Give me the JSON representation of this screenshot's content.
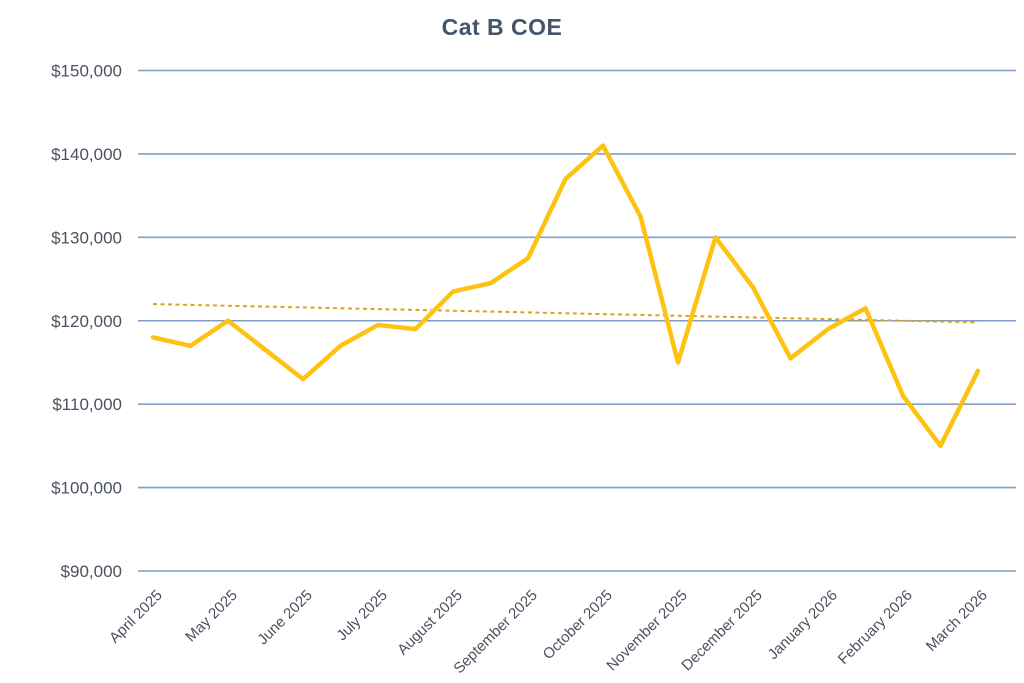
{
  "chart_data": {
    "type": "line",
    "title": "Cat B COE",
    "x_tick_labels": [
      "April 2025",
      "May 2025",
      "June 2025",
      "July 2025",
      "August 2025",
      "September 2025",
      "October 2025",
      "November 2025",
      "December 2025",
      "January 2026",
      "February 2026",
      "March 2026"
    ],
    "x_tick_every": 2,
    "values": [
      118000,
      117000,
      120000,
      116500,
      113000,
      117000,
      119500,
      119000,
      123500,
      124500,
      127500,
      137000,
      141000,
      132500,
      115000,
      130000,
      124000,
      115500,
      119000,
      121500,
      111000,
      105000,
      114000
    ],
    "points_per_month": 2,
    "trendline": {
      "style": "dashed",
      "start_value": 122000,
      "end_value": 119800
    },
    "y_ticks": [
      90000,
      100000,
      110000,
      120000,
      130000,
      140000,
      150000
    ],
    "y_tick_format": "$#,##0",
    "ylim": [
      90000,
      150000
    ],
    "xlabel": "",
    "ylabel": "",
    "grid": "horizontal",
    "legend": "none",
    "colors": {
      "series": "#FEC211",
      "series_edge": "#E8A33D",
      "trendline": "#D9A520",
      "gridline": "#7F9DC7",
      "title": "#44546A",
      "axis_text": "#4A5260",
      "background": "#FFFFFF"
    }
  }
}
